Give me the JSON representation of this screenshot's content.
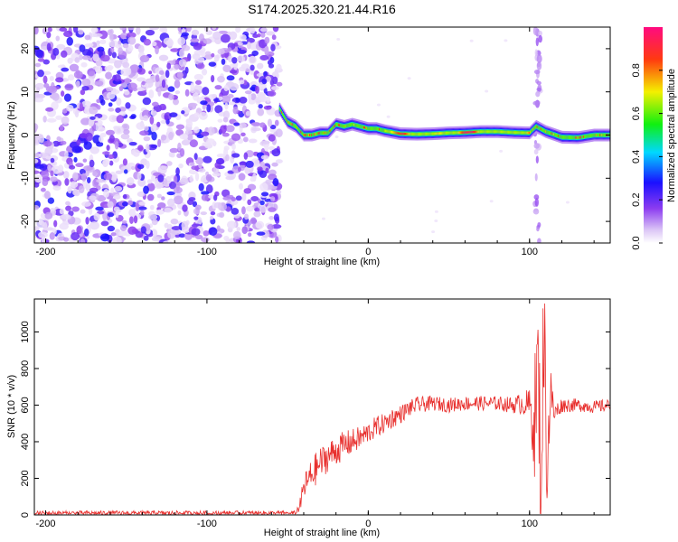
{
  "chart_data": [
    {
      "type": "heatmap",
      "title": "S174.2025.320.21.44.R16",
      "xlabel": "Height of straight line (km)",
      "ylabel": "Frequency (Hz)",
      "xlim": [
        -207,
        150
      ],
      "ylim": [
        -25,
        25
      ],
      "xticks": [
        -200,
        -100,
        0,
        100
      ],
      "yticks": [
        -20,
        -10,
        0,
        10,
        20
      ],
      "noise_region_x": [
        -207,
        -55
      ],
      "signal_onset_x": -55,
      "ridge": {
        "x": [
          -55,
          -50,
          -45,
          -40,
          -35,
          -30,
          -25,
          -20,
          -15,
          -10,
          -5,
          0,
          5,
          10,
          20,
          30,
          40,
          50,
          60,
          70,
          80,
          90,
          100,
          104,
          110,
          120,
          130,
          140,
          150
        ],
        "y": [
          6,
          3,
          2,
          0,
          0,
          0.5,
          0.5,
          2.5,
          2,
          2.5,
          2,
          1.5,
          1.5,
          1,
          0.3,
          0.2,
          0.3,
          0.5,
          0.6,
          0.8,
          0.8,
          0.6,
          0.5,
          2,
          0.8,
          -0.5,
          -0.6,
          0,
          0
        ]
      },
      "vertical_artifact_x": 105
    },
    {
      "type": "line",
      "xlabel": "Height of straight line (km)",
      "ylabel": "SNR (10 * v/v)",
      "xlim": [
        -207,
        150
      ],
      "ylim": [
        0,
        1180
      ],
      "xticks": [
        -200,
        -100,
        0,
        100
      ],
      "yticks": [
        0,
        200,
        400,
        600,
        800,
        1000
      ],
      "color": "#e8302e",
      "series": [
        {
          "name": "SNR",
          "x": [
            -207,
            -150,
            -100,
            -50,
            -45,
            -42,
            -40,
            -35,
            -30,
            -25,
            -20,
            -15,
            -10,
            -5,
            0,
            5,
            10,
            15,
            20,
            25,
            30,
            40,
            50,
            60,
            70,
            80,
            90,
            95,
            100,
            103,
            105,
            107,
            109,
            111,
            113,
            115,
            120,
            130,
            140,
            150
          ],
          "y": [
            10,
            10,
            10,
            10,
            10,
            60,
            150,
            220,
            280,
            320,
            350,
            380,
            400,
            420,
            450,
            480,
            500,
            530,
            550,
            580,
            600,
            610,
            600,
            610,
            610,
            610,
            600,
            610,
            600,
            500,
            800,
            300,
            1000,
            250,
            700,
            550,
            600,
            600,
            590,
            600
          ],
          "noise_amp": [
            12,
            12,
            12,
            12,
            12,
            40,
            70,
            90,
            90,
            85,
            80,
            80,
            70,
            65,
            60,
            60,
            55,
            55,
            50,
            45,
            45,
            40,
            40,
            40,
            40,
            40,
            45,
            60,
            90,
            300,
            450,
            450,
            400,
            300,
            150,
            60,
            40,
            35,
            35,
            35
          ]
        }
      ]
    },
    {
      "type": "colorbar",
      "ylabel": "Normalized spectral amplitude",
      "range": [
        0.0,
        1.0
      ],
      "ticks": [
        "0.0",
        "0.2",
        "0.4",
        "0.6",
        "0.8"
      ],
      "tick_values": [
        0.0,
        0.2,
        0.4,
        0.6,
        0.8
      ],
      "stops": [
        {
          "v": 0.0,
          "color": "#ffffff"
        },
        {
          "v": 0.06,
          "color": "#dcc6f6"
        },
        {
          "v": 0.16,
          "color": "#8c3cf0"
        },
        {
          "v": 0.28,
          "color": "#1a10ff"
        },
        {
          "v": 0.42,
          "color": "#00d8ff"
        },
        {
          "v": 0.55,
          "color": "#10f010"
        },
        {
          "v": 0.7,
          "color": "#f4f000"
        },
        {
          "v": 0.85,
          "color": "#ff3a10"
        },
        {
          "v": 1.0,
          "color": "#ff0a80"
        }
      ]
    }
  ]
}
